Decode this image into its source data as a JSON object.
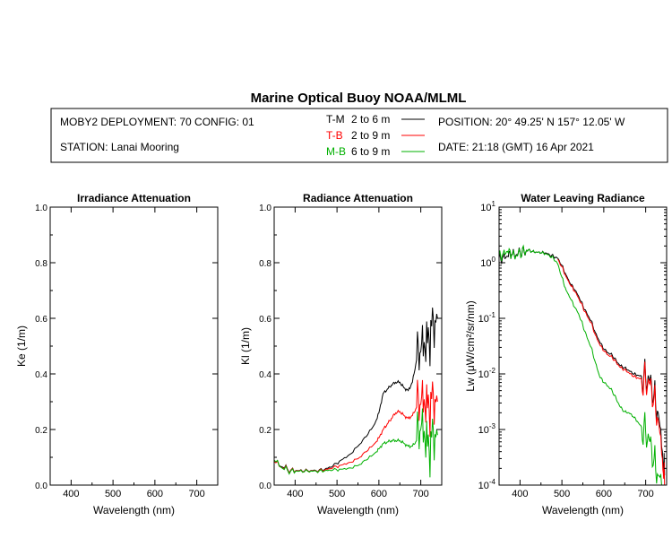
{
  "title": "Marine Optical Buoy NOAA/MLML",
  "header": {
    "deployment": "MOBY2 DEPLOYMENT: 70 CONFIG: 01",
    "station": "STATION: Lanai Mooring",
    "position": "POSITION: 20° 49.25' N   157° 12.05' W",
    "date": "DATE: 21:18 (GMT) 16 Apr 2021",
    "legend": [
      {
        "code": "T-M",
        "range": "2 to 6  m",
        "color": "#000000"
      },
      {
        "code": "T-B",
        "range": "2 to 9  m",
        "color": "#ff0000"
      },
      {
        "code": "M-B",
        "range": "6 to 9  m",
        "color": "#00b000"
      }
    ]
  },
  "chart_data": [
    {
      "type": "line",
      "title": "Irradiance Attenuation",
      "xlabel": "Wavelength (nm)",
      "ylabel": "Ke  (1/m)",
      "xlim": [
        350,
        750
      ],
      "ylim": [
        0,
        1.0
      ],
      "xticks": [
        "400",
        "500",
        "600",
        "700"
      ],
      "yticks": [
        "0.0",
        "0.2",
        "0.4",
        "0.6",
        "0.8",
        "1.0"
      ],
      "series": []
    },
    {
      "type": "line",
      "title": "Radiance Attenuation",
      "xlabel": "Wavelength (nm)",
      "ylabel": "Kl  (1/m)",
      "xlim": [
        350,
        750
      ],
      "ylim": [
        0,
        1.0
      ],
      "xticks": [
        "400",
        "500",
        "600",
        "700"
      ],
      "yticks": [
        "0.0",
        "0.2",
        "0.4",
        "0.6",
        "0.8",
        "1.0"
      ],
      "series": [
        {
          "name": "T-M",
          "color": "#000000",
          "x": [
            350,
            370,
            390,
            410,
            430,
            450,
            470,
            490,
            510,
            530,
            550,
            570,
            590,
            600,
            610,
            620,
            630,
            640,
            650,
            660,
            670,
            680,
            690,
            700,
            710,
            720,
            730,
            740
          ],
          "y": [
            0.085,
            0.065,
            0.055,
            0.052,
            0.052,
            0.052,
            0.056,
            0.068,
            0.09,
            0.11,
            0.14,
            0.175,
            0.22,
            0.26,
            0.33,
            0.345,
            0.36,
            0.37,
            0.37,
            0.35,
            0.34,
            0.37,
            0.45,
            0.48,
            0.49,
            0.52,
            0.6,
            0.6
          ]
        },
        {
          "name": "T-B",
          "color": "#ff0000",
          "x": [
            350,
            370,
            390,
            410,
            430,
            450,
            470,
            490,
            510,
            530,
            550,
            570,
            590,
            600,
            610,
            620,
            630,
            640,
            650,
            660,
            670,
            680,
            690,
            700,
            710,
            720,
            730,
            740
          ],
          "y": [
            0.085,
            0.062,
            0.054,
            0.051,
            0.051,
            0.051,
            0.054,
            0.062,
            0.072,
            0.082,
            0.095,
            0.12,
            0.15,
            0.17,
            0.2,
            0.22,
            0.24,
            0.26,
            0.265,
            0.25,
            0.24,
            0.25,
            0.28,
            0.29,
            0.28,
            0.27,
            0.33,
            0.3
          ]
        },
        {
          "name": "M-B",
          "color": "#00b000",
          "x": [
            350,
            370,
            390,
            410,
            430,
            450,
            470,
            490,
            510,
            530,
            550,
            570,
            590,
            600,
            610,
            620,
            630,
            640,
            650,
            660,
            670,
            680,
            690,
            700,
            710,
            720,
            730,
            740
          ],
          "y": [
            0.09,
            0.06,
            0.052,
            0.05,
            0.05,
            0.05,
            0.051,
            0.054,
            0.057,
            0.062,
            0.07,
            0.09,
            0.115,
            0.13,
            0.15,
            0.155,
            0.16,
            0.16,
            0.16,
            0.15,
            0.14,
            0.14,
            0.16,
            0.2,
            0.16,
            0.12,
            0.2,
            0.18
          ]
        }
      ]
    },
    {
      "type": "line",
      "title": "Water Leaving Radiance",
      "xlabel": "Wavelength (nm)",
      "ylabel": "Lw  (μW/cm²/sr/nm)",
      "yscale": "log",
      "xlim": [
        350,
        750
      ],
      "ylim": [
        0.0001,
        10
      ],
      "xticks": [
        "400",
        "500",
        "600",
        "700"
      ],
      "yticks": [
        "10^-4",
        "10^-3",
        "10^-2",
        "10^-1",
        "10^0",
        "10^1"
      ],
      "series": [
        {
          "name": "T-M",
          "color": "#000000",
          "x": [
            350,
            360,
            370,
            380,
            390,
            400,
            410,
            420,
            430,
            440,
            450,
            460,
            470,
            480,
            490,
            500,
            510,
            520,
            530,
            540,
            550,
            560,
            570,
            580,
            590,
            600,
            610,
            620,
            630,
            640,
            650,
            660,
            670,
            680,
            690,
            700,
            710,
            720,
            730,
            740,
            745
          ],
          "y": [
            1.2,
            1.3,
            1.3,
            1.4,
            1.35,
            1.6,
            1.55,
            1.7,
            1.6,
            1.55,
            1.5,
            1.5,
            1.4,
            1.3,
            1.2,
            0.9,
            0.6,
            0.42,
            0.33,
            0.25,
            0.17,
            0.12,
            0.09,
            0.055,
            0.038,
            0.028,
            0.024,
            0.022,
            0.017,
            0.014,
            0.013,
            0.0115,
            0.01,
            0.0095,
            0.009,
            0.0085,
            0.0075,
            0.0045,
            0.002,
            0.0004,
            0.00015
          ]
        },
        {
          "name": "T-B",
          "color": "#ff0000",
          "x": [
            490,
            500,
            510,
            520,
            530,
            540,
            550,
            560,
            570,
            580,
            590,
            600,
            610,
            620,
            630,
            640,
            650,
            660,
            670,
            680,
            690,
            700,
            710,
            720,
            730,
            740,
            745
          ],
          "y": [
            1.15,
            0.85,
            0.56,
            0.4,
            0.31,
            0.23,
            0.16,
            0.11,
            0.083,
            0.05,
            0.034,
            0.026,
            0.022,
            0.02,
            0.016,
            0.013,
            0.012,
            0.0105,
            0.009,
            0.0085,
            0.008,
            0.0075,
            0.0065,
            0.0038,
            0.0015,
            0.0003,
            0.0001
          ]
        },
        {
          "name": "M-B",
          "color": "#00b000",
          "x": [
            350,
            360,
            370,
            380,
            390,
            400,
            410,
            420,
            430,
            440,
            450,
            460,
            470,
            480,
            490,
            500,
            510,
            520,
            530,
            540,
            550,
            560,
            570,
            580,
            590,
            600,
            610,
            620,
            630,
            640,
            650,
            660,
            670,
            680,
            690,
            700,
            710,
            720,
            730,
            740
          ],
          "y": [
            1.3,
            1.5,
            1.6,
            1.35,
            1.3,
            1.55,
            1.6,
            1.7,
            1.6,
            1.55,
            1.5,
            1.45,
            1.35,
            1.2,
            0.95,
            0.55,
            0.32,
            0.23,
            0.16,
            0.12,
            0.075,
            0.045,
            0.03,
            0.016,
            0.009,
            0.007,
            0.006,
            0.005,
            0.0035,
            0.0025,
            0.0021,
            0.002,
            0.0017,
            0.0014,
            0.0011,
            0.0009,
            0.0006,
            0.0003,
            0.00015,
            0.0001
          ]
        }
      ]
    }
  ]
}
